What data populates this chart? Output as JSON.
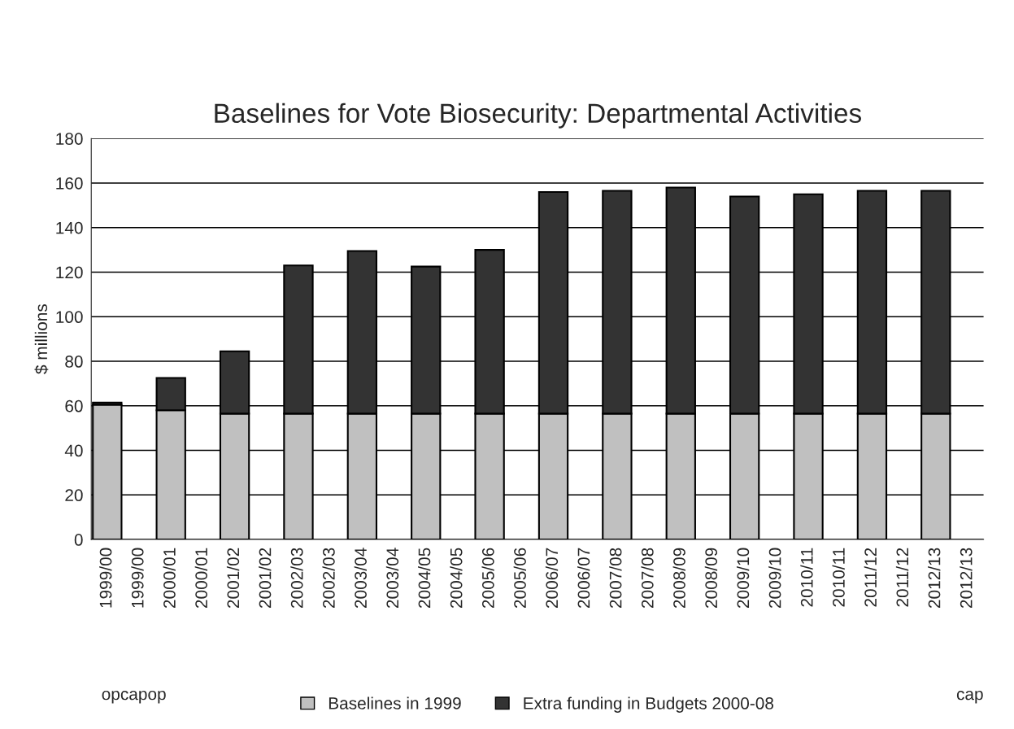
{
  "chart_data": {
    "type": "bar",
    "title": "Baselines for Vote Biosecurity: Departmental Activities",
    "ylabel": "$ millions",
    "categories": [
      "1999/00",
      "1999/00",
      "2000/01",
      "2000/01",
      "2001/02",
      "2001/02",
      "2002/03",
      "2002/03",
      "2003/04",
      "2003/04",
      "2004/05",
      "2004/05",
      "2005/06",
      "2005/06",
      "2006/07",
      "2006/07",
      "2007/08",
      "2007/08",
      "2008/09",
      "2008/09",
      "2009/10",
      "2009/10",
      "2010/11",
      "2010/11",
      "2011/12",
      "2011/12",
      "2012/13",
      "2012/13"
    ],
    "stacked": true,
    "series": [
      {
        "name": "Baselines in 1999",
        "color": "#c0c0c0",
        "values": [
          60.5,
          null,
          58,
          null,
          56.5,
          null,
          56.5,
          null,
          56.5,
          null,
          56.5,
          null,
          56.5,
          null,
          56.5,
          null,
          56.5,
          null,
          56.5,
          null,
          56.5,
          null,
          56.5,
          null,
          56.5,
          null,
          56.5,
          null
        ]
      },
      {
        "name": "Extra funding in Budgets 2000-08",
        "color": "#333333",
        "values": [
          1,
          null,
          14.5,
          null,
          28,
          null,
          66.5,
          null,
          73,
          null,
          66,
          null,
          73.5,
          null,
          99.5,
          null,
          100,
          null,
          101.5,
          null,
          97.5,
          null,
          98.5,
          null,
          100,
          null,
          100,
          null
        ]
      }
    ],
    "ylim": [
      0,
      180
    ],
    "yticks": [
      0,
      20,
      40,
      60,
      80,
      100,
      120,
      140,
      160,
      180
    ],
    "grid": "y",
    "legend": "bottom",
    "annotations": [
      "opcapop",
      "cap"
    ]
  }
}
